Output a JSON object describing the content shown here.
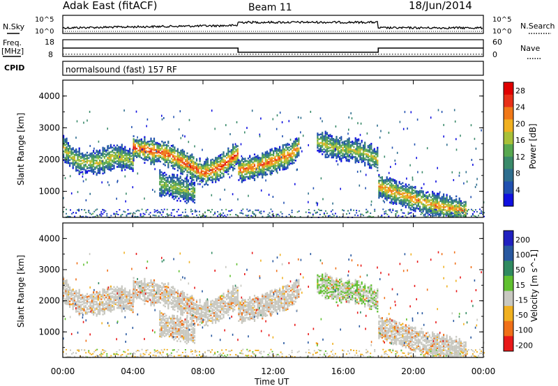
{
  "header": {
    "station": "Adak East (fitACF)",
    "beam": "Beam 11",
    "date": "18/Jun/2014"
  },
  "panels": {
    "nsky": {
      "label": "N.Sky",
      "tick_top": "10^5",
      "tick_bottom": "10^0"
    },
    "nsearch": {
      "label": "N.Search",
      "tick_top": "10^5",
      "tick_bottom": "10^0"
    },
    "freq": {
      "label_line1": "Freq.",
      "label_line2": "[MHz]",
      "ticks": [
        "18",
        "8"
      ]
    },
    "nave": {
      "label": "Nave",
      "ticks": [
        "60",
        "0"
      ]
    },
    "cpid": {
      "label": "CPID",
      "text": "normalsound (fast) 157 RF"
    }
  },
  "chart_data": [
    {
      "type": "line",
      "name": "frequency",
      "x_hours": [
        0,
        10,
        10,
        18,
        18,
        24
      ],
      "y": [
        13,
        13,
        10.5,
        10.5,
        13,
        13
      ],
      "ylim": [
        8,
        18
      ],
      "ylabel": "Freq. [MHz]"
    },
    {
      "type": "line",
      "name": "nave",
      "x_hours": [
        0,
        24
      ],
      "y": [
        8,
        8
      ],
      "ylim": [
        0,
        60
      ],
      "ylabel": "Nave"
    },
    {
      "type": "heatmap",
      "name": "power",
      "xlabel": "Time UT",
      "ylabel": "Slant Range [km]",
      "ylim": [
        180,
        4500
      ],
      "x_ticks": [
        "00:00",
        "04:00",
        "08:00",
        "12:00",
        "16:00",
        "20:00",
        "00:00"
      ],
      "y_ticks": [
        "1000",
        "2000",
        "3000",
        "4000"
      ],
      "colorbar": {
        "label": "Power [dB]",
        "ticks": [
          "4",
          "8",
          "12",
          "16",
          "20",
          "24",
          "28"
        ],
        "range": [
          0,
          30
        ]
      },
      "echo_bands": [
        {
          "t_hours": [
            0,
            0.5,
            1,
            2,
            3,
            4
          ],
          "range_km": [
            2400,
            2100,
            1950,
            1950,
            2150,
            2000
          ],
          "power_db": 18
        },
        {
          "t_hours": [
            4,
            5,
            6,
            7,
            8,
            9,
            10
          ],
          "range_km": [
            2400,
            2300,
            2200,
            1900,
            1600,
            1800,
            2250
          ],
          "power_db": 26
        },
        {
          "t_hours": [
            10,
            11,
            12,
            13,
            13.5
          ],
          "range_km": [
            1700,
            1800,
            2000,
            2200,
            2500
          ],
          "power_db": 24
        },
        {
          "t_hours": [
            5.5,
            6.5,
            7.5
          ],
          "range_km": [
            1300,
            1150,
            1000
          ],
          "power_db": 16
        },
        {
          "t_hours": [
            14.5,
            15.5,
            17,
            18
          ],
          "range_km": [
            2600,
            2400,
            2300,
            2000
          ],
          "power_db": 18
        },
        {
          "t_hours": [
            18,
            19,
            20,
            21.5,
            23
          ],
          "range_km": [
            1200,
            1000,
            800,
            550,
            420
          ],
          "power_db": 22
        }
      ]
    },
    {
      "type": "heatmap",
      "name": "velocity",
      "xlabel": "Time UT",
      "ylabel": "Slant Range [km]",
      "ylim": [
        180,
        4500
      ],
      "x_ticks": [
        "00:00",
        "04:00",
        "08:00",
        "12:00",
        "16:00",
        "20:00",
        "00:00"
      ],
      "y_ticks": [
        "1000",
        "2000",
        "3000",
        "4000"
      ],
      "colorbar": {
        "label": "Velocity [m s^-1]",
        "ticks": [
          "200",
          "100",
          "50",
          "15",
          "-15",
          "-50",
          "-100",
          "-200"
        ],
        "range": [
          -250,
          250
        ]
      }
    }
  ],
  "colors": {
    "power_scale": [
      "#1010e0",
      "#2050b0",
      "#2e6e8e",
      "#3a8a6a",
      "#58a850",
      "#a8c038",
      "#f0b020",
      "#f07818",
      "#e83018",
      "#e00000"
    ],
    "velocity_scale": [
      "#2020c0",
      "#2858a0",
      "#308a60",
      "#60c030",
      "#c8c8c0",
      "#f0b020",
      "#f07018",
      "#e81818"
    ],
    "frame": "#000000"
  }
}
